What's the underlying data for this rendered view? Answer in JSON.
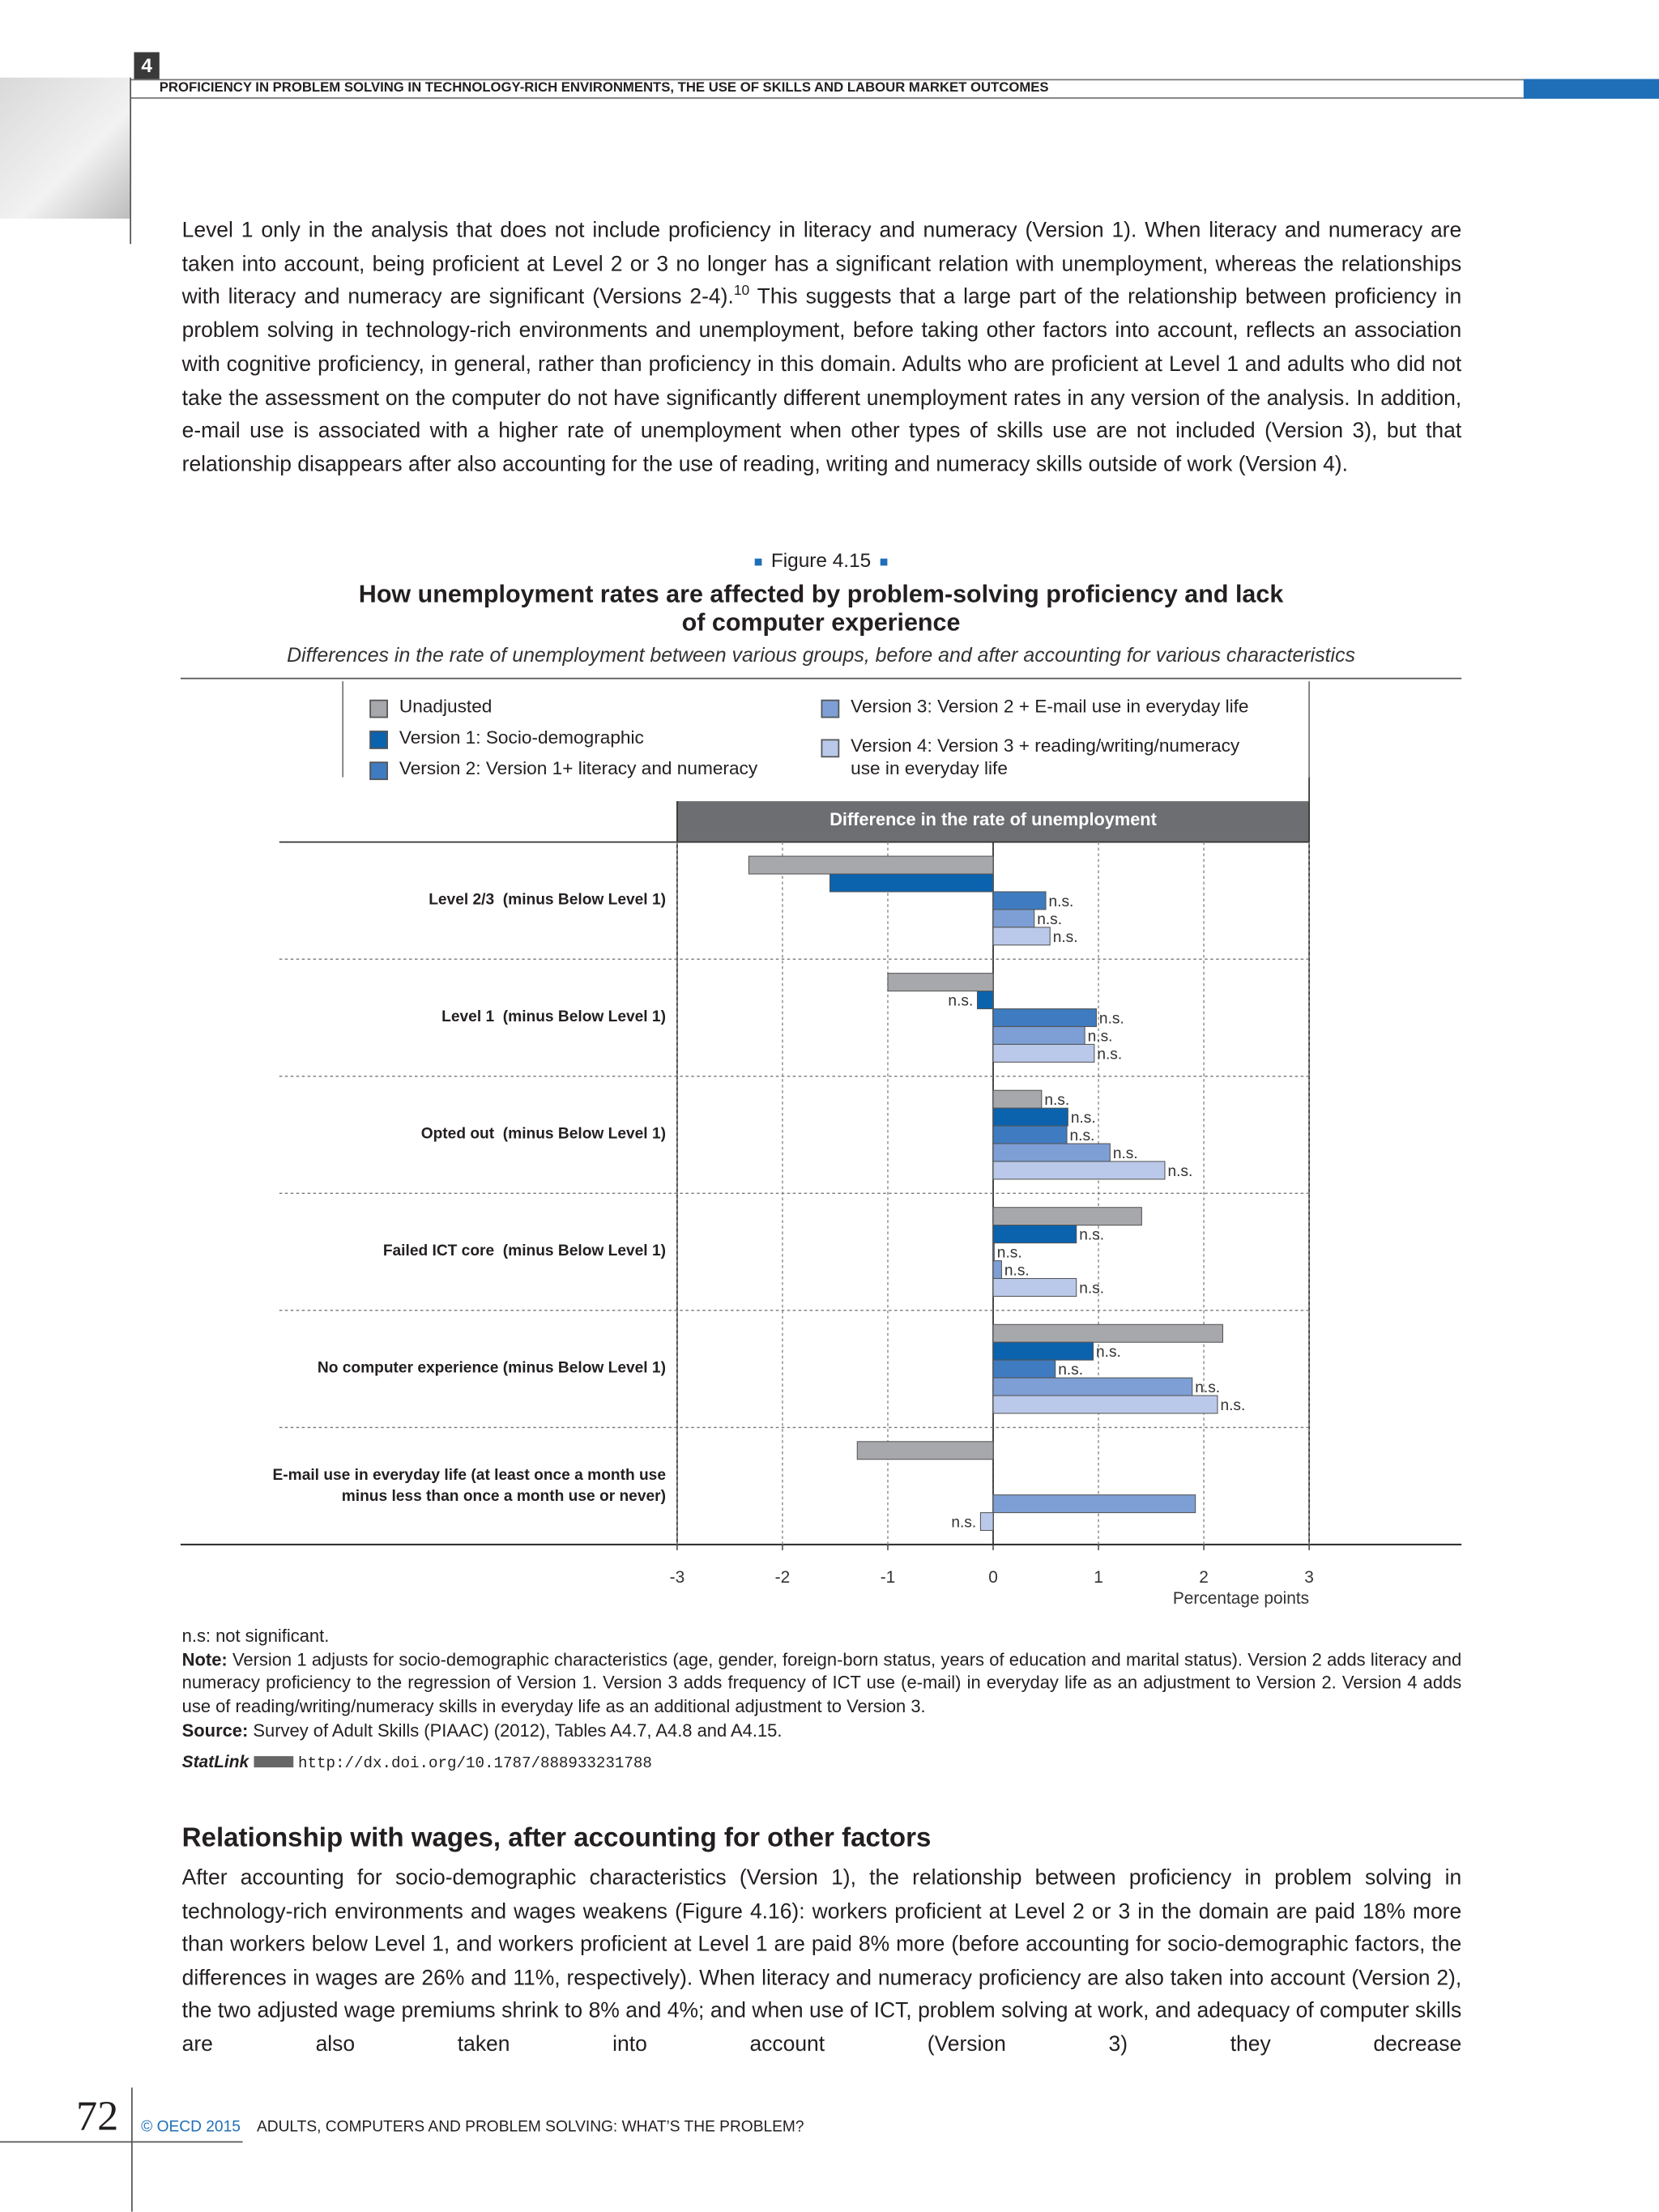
{
  "header": {
    "chapter": "4",
    "running_title": "PROFICIENCY IN PROBLEM SOLVING IN TECHNOLOGY-RICH ENVIRONMENTS, THE USE OF SKILLS AND LABOUR MARKET OUTCOMES"
  },
  "intro": {
    "text_before": "Level 1 only in the analysis that does not include proficiency in literacy and numeracy (Version 1). When literacy and numeracy are taken into account, being proficient at Level 2 or 3 no longer has a significant relation with unemployment, whereas the relationships with literacy and numeracy are significant (Versions 2-4).",
    "footnote_ref": "10",
    "text_after": "This suggests that a large part of the relationship between proficiency in problem solving in technology-rich environments and unemployment, before taking other factors into account, reflects an association with cognitive proficiency, in general, rather than proficiency in this domain. Adults who are proficient at Level 1 and adults who did not take the assessment on the computer do not have significantly different unemployment rates in any version of the analysis. In addition, e-mail use is associated with a higher rate of unemployment when other types of skills use are not included (Version 3), but that relationship disappears after also accounting for the use of reading, writing and numeracy skills outside of work (Version 4)."
  },
  "figure": {
    "label": "Figure 4.15",
    "title": "How unemployment rates are affected by problem-solving proficiency and lack of computer experience",
    "subtitle": "Differences in the rate of unemployment between various groups, before and after accounting for various characteristics"
  },
  "chart_data": {
    "type": "bar",
    "orientation": "horizontal",
    "value_axis_header": "Difference in the rate of unemployment",
    "xlabel": "Percentage points",
    "categories": [
      "Level 2/3  (minus Below Level 1)",
      "Level 1  (minus Below Level 1)",
      "Opted out  (minus Below Level 1)",
      "Failed ICT core  (minus Below Level 1)",
      "No computer experience (minus Below Level 1)",
      "E-mail use in everyday life (at least once a month use minus less than once a month use or never)"
    ],
    "series": [
      {
        "name": "Unadjusted",
        "color": "#a7a8ab",
        "values": [
          -2.32,
          -1.0,
          0.46,
          1.41,
          2.18,
          -1.29
        ],
        "value_labels": [
          null,
          null,
          "n.s.",
          null,
          null,
          null
        ]
      },
      {
        "name": "Version 1: Socio-demographic",
        "color": "#0b62ad",
        "values": [
          -1.55,
          -0.15,
          0.71,
          0.79,
          0.95,
          null
        ],
        "value_labels": [
          null,
          "n.s.",
          "n.s.",
          "n.s.",
          "n.s.",
          null
        ]
      },
      {
        "name": "Version 2: Version 1+ literacy and numeracy",
        "color": "#3f7bc0",
        "values": [
          0.5,
          0.98,
          0.7,
          0.01,
          0.59,
          null
        ],
        "value_labels": [
          "n.s.",
          "n.s.",
          "n.s.",
          "n.s.",
          "n.s.",
          null
        ]
      },
      {
        "name": "Version 3: Version 2 + E-mail use  in everyday life",
        "color": "#7d9fd5",
        "values": [
          0.39,
          0.87,
          1.11,
          0.08,
          1.89,
          1.92
        ],
        "value_labels": [
          "n.s.",
          "n.s.",
          "n.s.",
          "n.s.",
          "n.s.",
          null
        ]
      },
      {
        "name": "Version 4: Version 3 + reading/writing/numeracy use in everyday life",
        "color": "#bac9ea",
        "values": [
          0.54,
          0.96,
          1.63,
          0.79,
          2.13,
          -0.12
        ],
        "value_labels": [
          "n.s.",
          "n.s.",
          "n.s.",
          "n.s.",
          "n.s.",
          "n.s."
        ]
      }
    ],
    "xlim": [
      -3,
      3
    ],
    "xticks": [
      -3,
      -2,
      -1,
      0,
      1,
      2,
      3
    ],
    "grid": true
  },
  "notes": {
    "ns": "n.s: not significant.",
    "note_label": "Note:",
    "note_text": "Version 1 adjusts for socio-demographic characteristics (age, gender, foreign-born status, years of education and marital status). Version 2 adds literacy and numeracy proficiency to the regression of Version 1. Version 3 adds frequency of ICT use (e-mail) in everyday life as an adjustment to Version 2. Version 4 adds use of reading/writing/numeracy skills in everyday life as an additional adjustment to Version 3.",
    "source_label": "Source:",
    "source_text": "Survey of Adult Skills (PIAAC) (2012), Tables A4.7, A4.8 and A4.15.",
    "statlink_label": "StatLink",
    "statlink_url": "http://dx.doi.org/10.1787/888933231788"
  },
  "section": {
    "heading": "Relationship with wages, after accounting for other factors",
    "text": "After accounting for socio-demographic characteristics (Version 1), the relationship between proficiency in problem solving in technology-rich environments and wages weakens (Figure 4.16): workers proficient at Level 2 or 3 in the domain are paid 18% more than workers below Level 1, and workers proficient at Level 1 are paid 8% more (before accounting for socio-demographic factors, the differences in wages are 26% and 11%, respectively). When literacy and numeracy proficiency are also taken into account (Version 2), the two adjusted wage premiums shrink to 8% and 4%; and when use of ICT, problem solving at work, and adequacy of computer skills are also taken into account (Version 3) they decrease"
  },
  "footer": {
    "page_number": "72",
    "copyright": "© OECD 2015",
    "book_title": "ADULTS, COMPUTERS AND PROBLEM SOLVING: WHAT’S THE PROBLEM?"
  }
}
